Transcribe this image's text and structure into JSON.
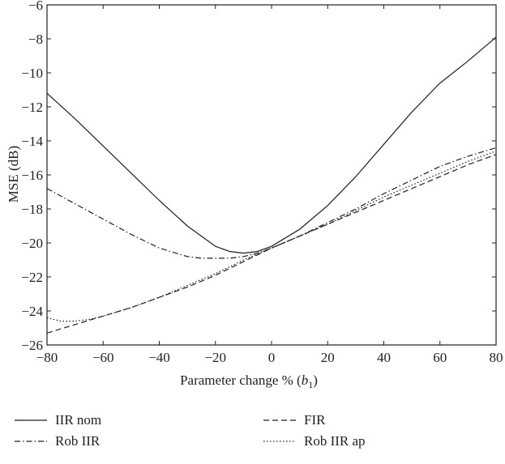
{
  "chart_data": {
    "type": "line",
    "xlabel": "Parameter change % (",
    "xlabel_var": "b",
    "xlabel_sub": "1",
    "xlabel_close": ")",
    "ylabel": "MSE (dB)",
    "xlim": [
      -80,
      80
    ],
    "ylim": [
      -26,
      -6
    ],
    "xticks": [
      -80,
      -60,
      -40,
      -20,
      0,
      20,
      40,
      60,
      80
    ],
    "yticks": [
      -26,
      -24,
      -22,
      -20,
      -18,
      -16,
      -14,
      -12,
      -10,
      -8,
      -6
    ],
    "grid": false,
    "legend_position": "bottom",
    "series": [
      {
        "name": "IIR nom",
        "dash": "solid",
        "x": [
          -80,
          -70,
          -60,
          -50,
          -40,
          -30,
          -20,
          -15,
          -10,
          -5,
          0,
          10,
          20,
          30,
          40,
          50,
          60,
          70,
          80
        ],
        "y": [
          -11.2,
          -12.7,
          -14.3,
          -15.9,
          -17.5,
          -19.0,
          -20.2,
          -20.5,
          -20.6,
          -20.5,
          -20.2,
          -19.2,
          -17.8,
          -16.1,
          -14.2,
          -12.3,
          -10.6,
          -9.3,
          -7.9
        ]
      },
      {
        "name": "FIR",
        "dash": "dashed",
        "x": [
          -80,
          -70,
          -60,
          -50,
          -40,
          -30,
          -20,
          -10,
          0,
          10,
          20,
          30,
          40,
          50,
          60,
          70,
          80
        ],
        "y": [
          -25.3,
          -24.8,
          -24.3,
          -23.8,
          -23.2,
          -22.6,
          -21.9,
          -21.1,
          -20.3,
          -19.6,
          -18.9,
          -18.2,
          -17.5,
          -16.8,
          -16.1,
          -15.4,
          -14.8
        ]
      },
      {
        "name": "Rob IIR",
        "dash": "dashdot",
        "x": [
          -80,
          -70,
          -60,
          -50,
          -40,
          -30,
          -25,
          -20,
          -15,
          -10,
          -5,
          0,
          10,
          20,
          30,
          40,
          50,
          60,
          70,
          80
        ],
        "y": [
          -16.8,
          -17.7,
          -18.6,
          -19.5,
          -20.3,
          -20.8,
          -20.9,
          -20.9,
          -20.9,
          -20.8,
          -20.6,
          -20.3,
          -19.6,
          -18.8,
          -18.0,
          -17.1,
          -16.3,
          -15.5,
          -14.9,
          -14.4
        ]
      },
      {
        "name": "Rob IIR ap",
        "dash": "dotted",
        "x": [
          -80,
          -75,
          -70,
          -65,
          -60,
          -50,
          -40,
          -30,
          -20,
          -10,
          0,
          10,
          20,
          30,
          40,
          50,
          60,
          70,
          80
        ],
        "y": [
          -24.4,
          -24.6,
          -24.6,
          -24.5,
          -24.3,
          -23.8,
          -23.2,
          -22.5,
          -21.8,
          -21.0,
          -20.3,
          -19.6,
          -18.9,
          -18.1,
          -17.3,
          -16.6,
          -15.9,
          -15.2,
          -14.6
        ]
      }
    ]
  }
}
